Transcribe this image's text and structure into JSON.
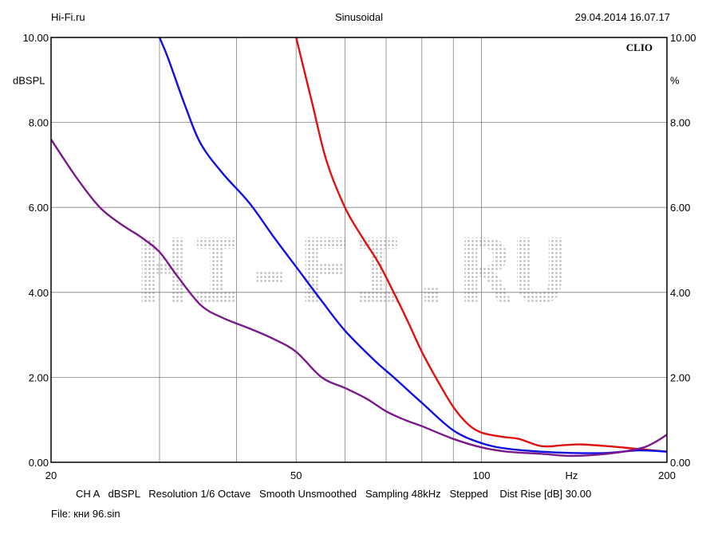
{
  "header": {
    "left": "Hi-Fi.ru",
    "center": "Sinusoidal",
    "right": "29.04.2014 16.07.17"
  },
  "brand": "CLIO",
  "watermark": "HI-FI.RU",
  "chart_data": {
    "type": "line",
    "xscale": "log",
    "xlim": [
      20,
      200
    ],
    "ylim": [
      0,
      10
    ],
    "grid": true,
    "ylabel_left": "dBSPL",
    "ylabel_right": "%",
    "xunit": "Hz",
    "yticks_left": [
      "0.00",
      "2.00",
      "4.00",
      "6.00",
      "8.00",
      "10.00"
    ],
    "yticks_right": [
      "0.00",
      "2.00",
      "4.00",
      "6.00",
      "8.00",
      "10.00"
    ],
    "xtick_labels": [
      {
        "x": 20,
        "label": "20"
      },
      {
        "x": 50,
        "label": "50"
      },
      {
        "x": 100,
        "label": "100"
      },
      {
        "x": 200,
        "label": "200"
      }
    ],
    "x_gridlines": [
      30,
      40,
      50,
      60,
      70,
      80,
      90,
      100
    ],
    "series": [
      {
        "color": "#e01010",
        "x": [
          50,
          53,
          56,
          60,
          64,
          68,
          72,
          76,
          80,
          85,
          90,
          95,
          100,
          108,
          115,
          125,
          135,
          145,
          160,
          175,
          190,
          200
        ],
        "y": [
          10,
          8.5,
          7.1,
          6.0,
          5.3,
          4.7,
          4.0,
          3.3,
          2.6,
          1.9,
          1.3,
          0.9,
          0.7,
          0.6,
          0.55,
          0.38,
          0.4,
          0.42,
          0.38,
          0.33,
          0.28,
          0.25
        ]
      },
      {
        "color": "#1010e0",
        "x": [
          30,
          31,
          33,
          35,
          38,
          42,
          46,
          50,
          55,
          60,
          67,
          72,
          80,
          90,
          100,
          110,
          125,
          140,
          160,
          180,
          200
        ],
        "y": [
          10,
          9.5,
          8.4,
          7.5,
          6.8,
          6.1,
          5.3,
          4.6,
          3.8,
          3.1,
          2.4,
          2.0,
          1.4,
          0.75,
          0.45,
          0.32,
          0.25,
          0.22,
          0.22,
          0.28,
          0.25
        ]
      },
      {
        "color": "#7a1a8a",
        "x": [
          20,
          22,
          24,
          26,
          28,
          30,
          32,
          35,
          38,
          42,
          46,
          50,
          55,
          60,
          65,
          70,
          75,
          80,
          90,
          100,
          110,
          125,
          140,
          160,
          180,
          190,
          200
        ],
        "y": [
          7.6,
          6.7,
          6.0,
          5.6,
          5.3,
          4.95,
          4.4,
          3.7,
          3.4,
          3.15,
          2.9,
          2.6,
          2.0,
          1.75,
          1.5,
          1.2,
          1.0,
          0.85,
          0.55,
          0.35,
          0.25,
          0.2,
          0.15,
          0.2,
          0.32,
          0.45,
          0.65
        ]
      }
    ]
  },
  "footer": {
    "settings": "CH A   dBSPL   Resolution 1/6 Octave   Smooth Unsmoothed   Sampling 48kHz   Stepped    Dist Rise [dB] 30.00",
    "file": "File: кни 96.sin"
  }
}
